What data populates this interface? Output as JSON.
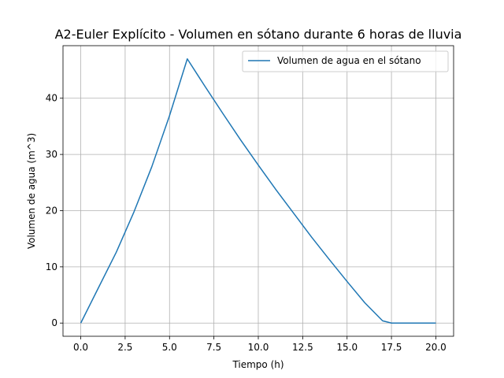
{
  "chart_data": {
    "type": "line",
    "title": "A2-Euler Explícito - Volumen en sótano durante 6 horas de lluvia",
    "xlabel": "Tiempo (h)",
    "ylabel": "Volumen de agua (m^3)",
    "xlim": [
      -1.0,
      21.0
    ],
    "ylim": [
      -2.35,
      49.35
    ],
    "xticks": [
      0.0,
      2.5,
      5.0,
      7.5,
      10.0,
      12.5,
      15.0,
      17.5,
      20.0
    ],
    "xtick_labels": [
      "0.0",
      "2.5",
      "5.0",
      "7.5",
      "10.0",
      "12.5",
      "15.0",
      "17.5",
      "20.0"
    ],
    "yticks": [
      0,
      10,
      20,
      30,
      40
    ],
    "ytick_labels": [
      "0",
      "10",
      "20",
      "30",
      "40"
    ],
    "grid": true,
    "legend_position": "upper-right",
    "series": [
      {
        "name": "Volumen de agua en el sótano",
        "color": "#1f77b4",
        "x": [
          0.0,
          1.0,
          2.0,
          3.0,
          4.0,
          5.0,
          6.0,
          7.0,
          8.0,
          9.0,
          10.0,
          11.0,
          12.0,
          13.0,
          14.0,
          15.0,
          16.0,
          17.0,
          17.5,
          18.0,
          19.0,
          20.0
        ],
        "y": [
          0.0,
          6.3,
          12.6,
          19.8,
          27.8,
          36.9,
          47.0,
          42.1,
          37.3,
          32.6,
          28.1,
          23.7,
          19.5,
          15.3,
          11.3,
          7.4,
          3.6,
          0.4,
          0.0,
          0.0,
          0.0,
          0.0
        ]
      }
    ]
  }
}
